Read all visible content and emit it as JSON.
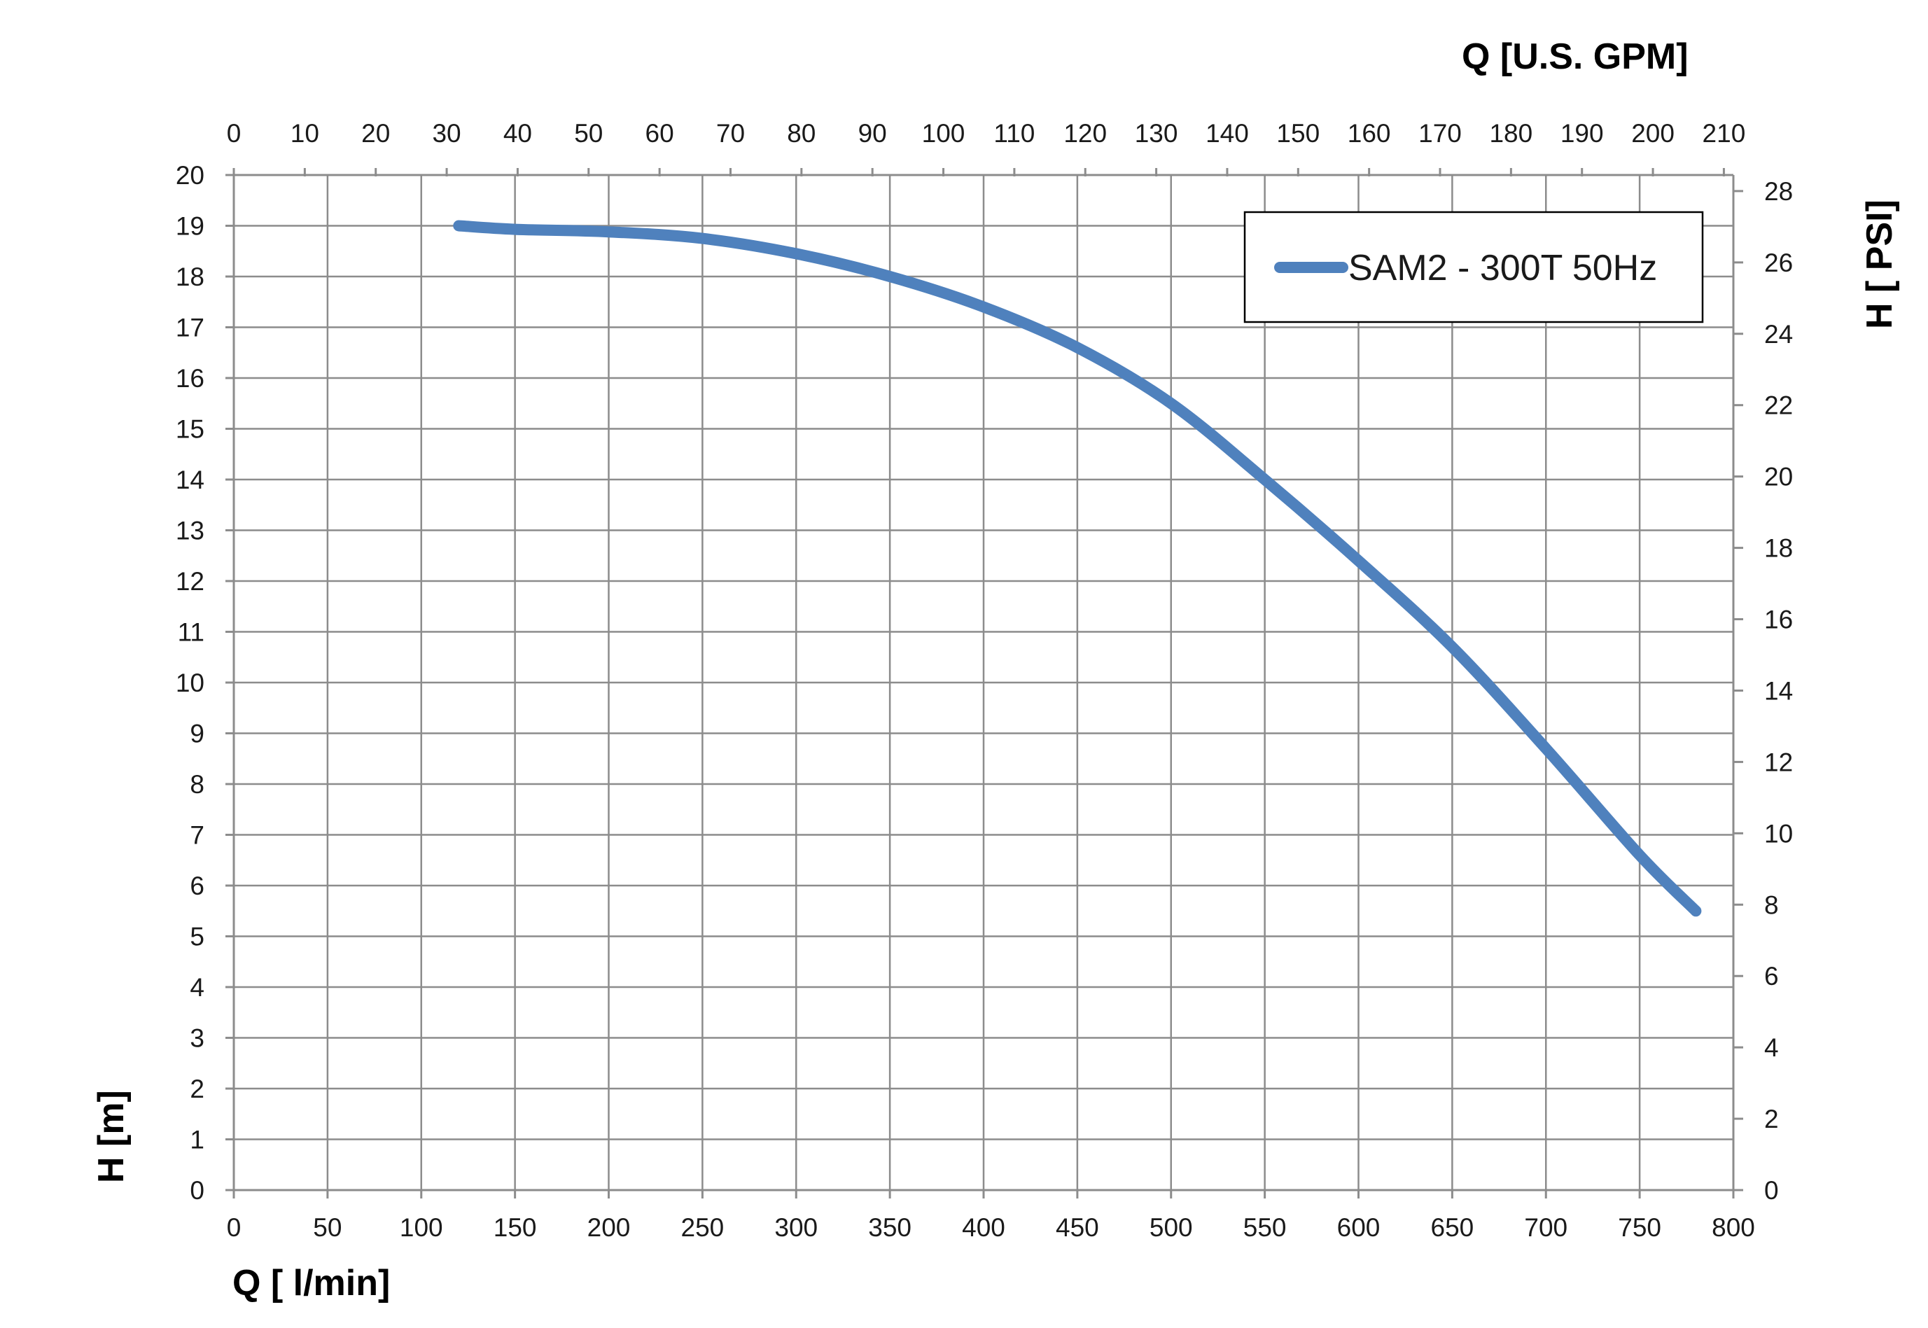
{
  "chart_data": {
    "type": "line",
    "x": [
      120,
      150,
      200,
      250,
      300,
      350,
      400,
      450,
      500,
      550,
      600,
      650,
      700,
      750,
      780
    ],
    "series": [
      {
        "name": "SAM2 - 300T 50Hz",
        "color": "#4f81bd",
        "values": [
          19.0,
          18.93,
          18.88,
          18.75,
          18.45,
          18.0,
          17.4,
          16.6,
          15.5,
          14.0,
          12.4,
          10.7,
          8.7,
          6.6,
          5.5
        ]
      }
    ],
    "xlabel": "Q [ l/min]",
    "ylabel": "H [m]",
    "x2label": "Q  [U.S. GPM]",
    "y2label": "H [ PSI]",
    "xlim": [
      0,
      800
    ],
    "ylim": [
      0,
      20
    ],
    "x2lim": [
      0,
      211.34
    ],
    "y2lim": [
      0,
      28.45
    ],
    "x_ticks": [
      "0",
      "50",
      "100",
      "150",
      "200",
      "250",
      "300",
      "350",
      "400",
      "450",
      "500",
      "550",
      "600",
      "650",
      "700",
      "750",
      "800"
    ],
    "y_ticks": [
      "0",
      "1",
      "2",
      "3",
      "4",
      "5",
      "6",
      "7",
      "8",
      "9",
      "10",
      "11",
      "12",
      "13",
      "14",
      "15",
      "16",
      "17",
      "18",
      "19",
      "20"
    ],
    "x2_ticks": [
      "0",
      "10",
      "20",
      "30",
      "40",
      "50",
      "60",
      "70",
      "80",
      "90",
      "100",
      "110",
      "120",
      "130",
      "140",
      "150",
      "160",
      "170",
      "180",
      "190",
      "200",
      "210"
    ],
    "y2_ticks": [
      "0",
      "2",
      "4",
      "6",
      "8",
      "10",
      "12",
      "14",
      "16",
      "18",
      "20",
      "22",
      "24",
      "26",
      "28"
    ],
    "grid": true,
    "legend_position": "top-right"
  }
}
